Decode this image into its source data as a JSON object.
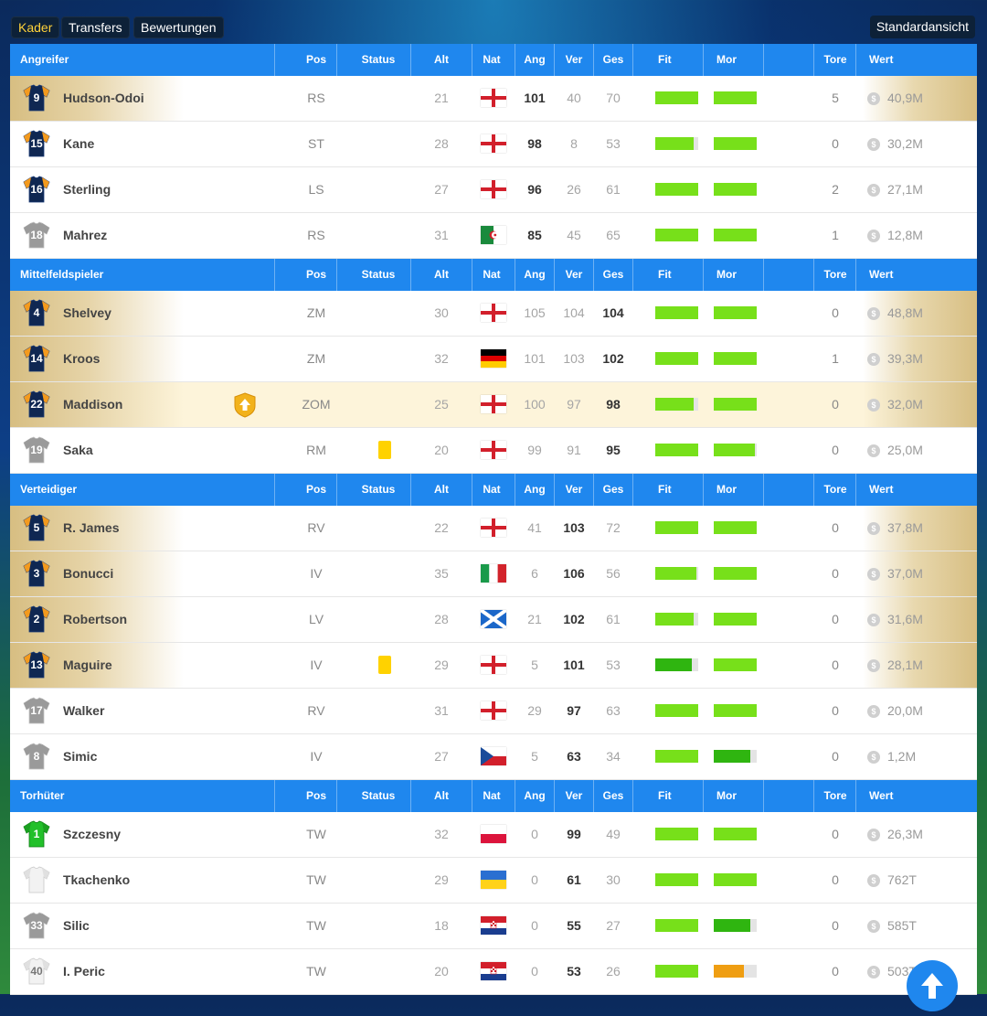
{
  "tabs": [
    {
      "label": "Kader",
      "active": true
    },
    {
      "label": "Transfers",
      "active": false
    },
    {
      "label": "Bewertungen",
      "active": false
    }
  ],
  "view_button": "Standardansicht",
  "columns": {
    "pos": "Pos",
    "status": "Status",
    "alt": "Alt",
    "nat": "Nat",
    "ang": "Ang",
    "ver": "Ver",
    "ges": "Ges",
    "fit": "Fit",
    "mor": "Mor",
    "tore": "Tore",
    "wert": "Wert"
  },
  "colors": {
    "header_blue": "#1f87ee",
    "bar_green": "#77e01a",
    "bar_darkgreen": "#2fb510",
    "bar_orange": "#ef9e12",
    "jersey_navy": "#0f2752",
    "jersey_orange": "#f39a1e",
    "jersey_gray": "#9a9a9a",
    "keeper_green": "#22c02a",
    "card_yellow": "#ffd200"
  },
  "sections": [
    {
      "title": "Angreifer",
      "players": [
        {
          "num": "9",
          "name": "Hudson-Odoi",
          "pos": "RS",
          "status": "",
          "alt": "21",
          "nat": "england",
          "ang": "101",
          "ver": "40",
          "ges": "70",
          "best": "ang",
          "fit": 1.0,
          "mor": 1.0,
          "mor_color": "green",
          "tore": "5",
          "wert": "40,9M",
          "jersey": "navy",
          "gold": true
        },
        {
          "num": "15",
          "name": "Kane",
          "pos": "ST",
          "status": "",
          "alt": "28",
          "nat": "england",
          "ang": "98",
          "ver": "8",
          "ges": "53",
          "best": "ang",
          "fit": 0.9,
          "mor": 1.0,
          "mor_color": "green",
          "tore": "0",
          "wert": "30,2M",
          "jersey": "navy",
          "gold": false
        },
        {
          "num": "16",
          "name": "Sterling",
          "pos": "LS",
          "status": "",
          "alt": "27",
          "nat": "england",
          "ang": "96",
          "ver": "26",
          "ges": "61",
          "best": "ang",
          "fit": 1.0,
          "mor": 1.0,
          "mor_color": "green",
          "tore": "2",
          "wert": "27,1M",
          "jersey": "navy",
          "gold": false
        },
        {
          "num": "18",
          "name": "Mahrez",
          "pos": "RS",
          "status": "",
          "alt": "31",
          "nat": "algeria",
          "ang": "85",
          "ver": "45",
          "ges": "65",
          "best": "ang",
          "fit": 1.0,
          "mor": 1.0,
          "mor_color": "green",
          "tore": "1",
          "wert": "12,8M",
          "jersey": "gray",
          "gold": false
        }
      ]
    },
    {
      "title": "Mittelfeldspieler",
      "players": [
        {
          "num": "4",
          "name": "Shelvey",
          "pos": "ZM",
          "status": "",
          "alt": "30",
          "nat": "england",
          "ang": "105",
          "ver": "104",
          "ges": "104",
          "best": "ges",
          "fit": 1.0,
          "mor": 1.0,
          "mor_color": "green",
          "tore": "0",
          "wert": "48,8M",
          "jersey": "navy",
          "gold": true
        },
        {
          "num": "14",
          "name": "Kroos",
          "pos": "ZM",
          "status": "",
          "alt": "32",
          "nat": "germany",
          "ang": "101",
          "ver": "103",
          "ges": "102",
          "best": "ges",
          "fit": 1.0,
          "mor": 1.0,
          "mor_color": "green",
          "tore": "1",
          "wert": "39,3M",
          "jersey": "navy",
          "gold": true
        },
        {
          "num": "22",
          "name": "Maddison",
          "pos": "ZOM",
          "status": "promo",
          "alt": "25",
          "nat": "england",
          "ang": "100",
          "ver": "97",
          "ges": "98",
          "best": "ges",
          "fit": 0.9,
          "mor": 1.0,
          "mor_color": "green",
          "tore": "0",
          "wert": "32,0M",
          "jersey": "navy",
          "gold": true,
          "highlight": true
        },
        {
          "num": "19",
          "name": "Saka",
          "pos": "RM",
          "status": "yellow",
          "alt": "20",
          "nat": "england",
          "ang": "99",
          "ver": "91",
          "ges": "95",
          "best": "ges",
          "fit": 1.0,
          "mor": 0.95,
          "mor_color": "green",
          "tore": "0",
          "wert": "25,0M",
          "jersey": "gray",
          "gold": false
        }
      ]
    },
    {
      "title": "Verteidiger",
      "players": [
        {
          "num": "5",
          "name": "R. James",
          "pos": "RV",
          "status": "",
          "alt": "22",
          "nat": "england",
          "ang": "41",
          "ver": "103",
          "ges": "72",
          "best": "ver",
          "fit": 1.0,
          "mor": 1.0,
          "mor_color": "green",
          "tore": "0",
          "wert": "37,8M",
          "jersey": "navy",
          "gold": true
        },
        {
          "num": "3",
          "name": "Bonucci",
          "pos": "IV",
          "status": "",
          "alt": "35",
          "nat": "italy",
          "ang": "6",
          "ver": "106",
          "ges": "56",
          "best": "ver",
          "fit": 0.95,
          "mor": 1.0,
          "mor_color": "green",
          "tore": "0",
          "wert": "37,0M",
          "jersey": "navy",
          "gold": true
        },
        {
          "num": "2",
          "name": "Robertson",
          "pos": "LV",
          "status": "",
          "alt": "28",
          "nat": "scotland",
          "ang": "21",
          "ver": "102",
          "ges": "61",
          "best": "ver",
          "fit": 0.9,
          "mor": 1.0,
          "mor_color": "green",
          "tore": "0",
          "wert": "31,6M",
          "jersey": "navy",
          "gold": true
        },
        {
          "num": "13",
          "name": "Maguire",
          "pos": "IV",
          "status": "yellow",
          "alt": "29",
          "nat": "england",
          "ang": "5",
          "ver": "101",
          "ges": "53",
          "best": "ver",
          "fit": 0.85,
          "fit_color": "darkgreen",
          "mor": 1.0,
          "mor_color": "green",
          "tore": "0",
          "wert": "28,1M",
          "jersey": "navy",
          "gold": true
        },
        {
          "num": "17",
          "name": "Walker",
          "pos": "RV",
          "status": "",
          "alt": "31",
          "nat": "england",
          "ang": "29",
          "ver": "97",
          "ges": "63",
          "best": "ver",
          "fit": 1.0,
          "mor": 1.0,
          "mor_color": "green",
          "tore": "0",
          "wert": "20,0M",
          "jersey": "gray",
          "gold": false
        },
        {
          "num": "8",
          "name": "Simic",
          "pos": "IV",
          "status": "",
          "alt": "27",
          "nat": "czech",
          "ang": "5",
          "ver": "63",
          "ges": "34",
          "best": "ver",
          "fit": 1.0,
          "mor": 0.85,
          "mor_color": "darkgreen",
          "tore": "0",
          "wert": "1,2M",
          "jersey": "gray",
          "gold": false
        }
      ]
    },
    {
      "title": "Torhüter",
      "players": [
        {
          "num": "1",
          "name": "Szczesny",
          "pos": "TW",
          "status": "",
          "alt": "32",
          "nat": "poland",
          "ang": "0",
          "ver": "99",
          "ges": "49",
          "best": "ver",
          "fit": 1.0,
          "mor": 1.0,
          "mor_color": "green",
          "tore": "0",
          "wert": "26,3M",
          "jersey": "keeper",
          "gold": false
        },
        {
          "num": "",
          "name": "Tkachenko",
          "pos": "TW",
          "status": "",
          "alt": "29",
          "nat": "ukraine",
          "ang": "0",
          "ver": "61",
          "ges": "30",
          "best": "ver",
          "fit": 1.0,
          "mor": 1.0,
          "mor_color": "green",
          "tore": "0",
          "wert": "762T",
          "jersey": "white",
          "gold": false
        },
        {
          "num": "33",
          "name": "Silic",
          "pos": "TW",
          "status": "",
          "alt": "18",
          "nat": "croatia",
          "ang": "0",
          "ver": "55",
          "ges": "27",
          "best": "ver",
          "fit": 1.0,
          "mor": 0.85,
          "mor_color": "darkgreen",
          "tore": "0",
          "wert": "585T",
          "jersey": "gray",
          "gold": false
        },
        {
          "num": "40",
          "name": "I. Peric",
          "pos": "TW",
          "status": "",
          "alt": "20",
          "nat": "croatia",
          "ang": "0",
          "ver": "53",
          "ges": "26",
          "best": "ver",
          "fit": 1.0,
          "mor": 0.7,
          "mor_color": "orange",
          "tore": "0",
          "wert": "503T",
          "jersey": "white",
          "gold": false
        }
      ]
    }
  ]
}
